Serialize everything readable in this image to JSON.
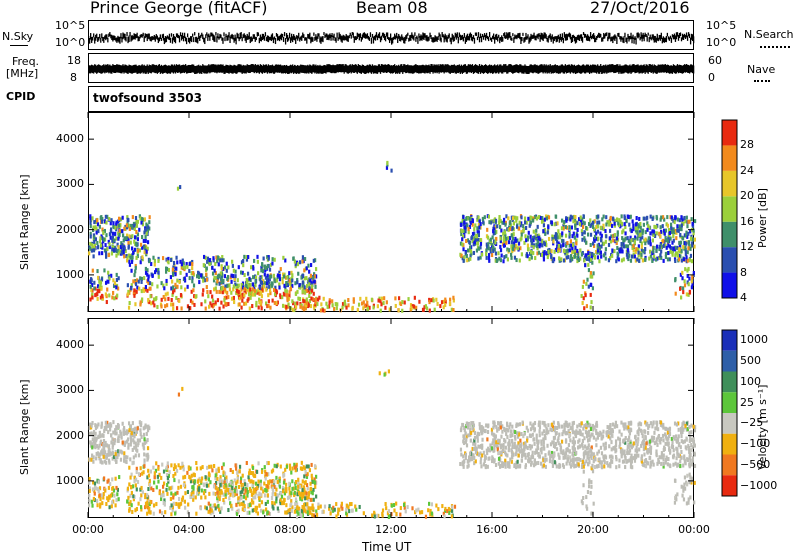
{
  "header": {
    "station": "Prince George (fitACF)",
    "beam": "Beam 08",
    "date": "27/Oct/2016"
  },
  "left_labels": {
    "nsky": "N.Sky",
    "freq": "Freq.",
    "freq_unit": "[MHz]",
    "cpid": "CPID"
  },
  "right_labels": {
    "nsearch": "N.Search",
    "nave": "Nave"
  },
  "axis_ticks": {
    "nsky_top": "10^5",
    "nsky_bottom": "10^0",
    "freq_top": "18",
    "freq_bottom": "8",
    "nsearch_top": "10^5",
    "nsearch_bottom": "10^0",
    "nave_top": "60",
    "nave_bottom": "0"
  },
  "cpid_text": "twofsound 3503",
  "chart_data": [
    {
      "type": "heatmap",
      "panel": "power",
      "ylabel": "Slant Range [km]",
      "xlabel": "Time UT",
      "x_ticks": [
        "00:00",
        "04:00",
        "08:00",
        "12:00",
        "16:00",
        "20:00",
        "00:00"
      ],
      "y_ticks": [
        1000,
        2000,
        3000,
        4000
      ],
      "ylim": [
        180,
        4600
      ],
      "colorbar_label": "Power [dB]",
      "colorbar_ticks": [
        "4",
        "8",
        "12",
        "16",
        "20",
        "24",
        "28"
      ],
      "colors": [
        "#1010e8",
        "#2a4fb0",
        "#3f8f6a",
        "#9bcf3a",
        "#e7c62a",
        "#f28a1c",
        "#e82a10"
      ]
    },
    {
      "type": "heatmap",
      "panel": "velocity",
      "ylabel": "Slant Range [km]",
      "xlabel": "Time UT",
      "x_ticks": [
        "00:00",
        "04:00",
        "08:00",
        "12:00",
        "16:00",
        "20:00",
        "00:00"
      ],
      "y_ticks": [
        1000,
        2000,
        3000,
        4000
      ],
      "ylim": [
        180,
        4600
      ],
      "colorbar_label": "Velocity [m s⁻¹]",
      "colorbar_ticks": [
        "1000",
        "500",
        "100",
        "25",
        "−25",
        "−100",
        "−500",
        "−1000"
      ],
      "colors": [
        "#1a2fb8",
        "#2e5fa8",
        "#3f8f5a",
        "#5cc63a",
        "#c8c8c0",
        "#f0b010",
        "#f07820",
        "#e82a10"
      ]
    }
  ],
  "colors": {
    "ground_scatter": "#bdbdb6",
    "data_black": "#000000"
  }
}
